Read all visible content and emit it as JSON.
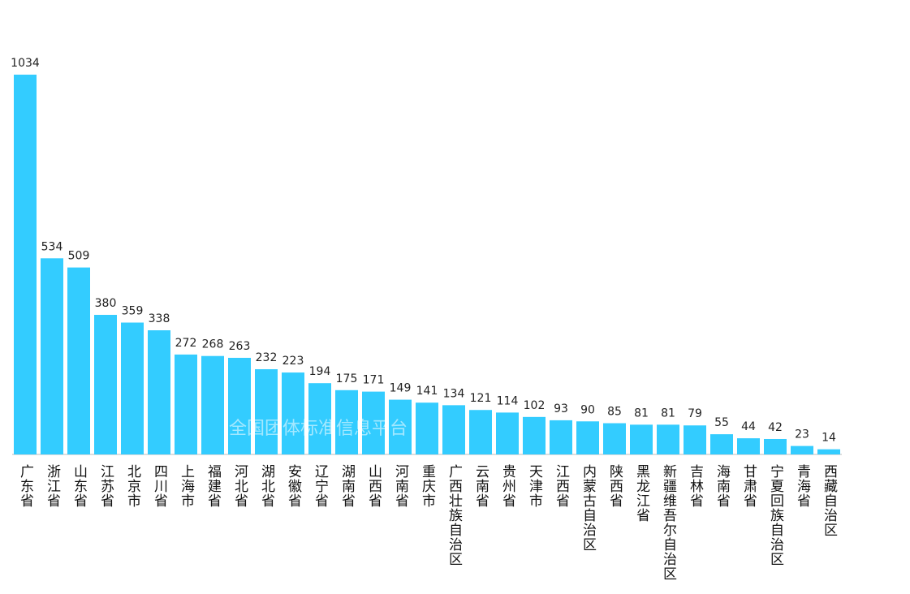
{
  "chart_data": {
    "type": "bar",
    "categories": [
      "广东省",
      "浙江省",
      "山东省",
      "江苏省",
      "北京市",
      "四川省",
      "上海市",
      "福建省",
      "河北省",
      "湖北省",
      "安徽省",
      "辽宁省",
      "湖南省",
      "山西省",
      "河南省",
      "重庆市",
      "广西壮族自治区",
      "云南省",
      "贵州省",
      "天津市",
      "江西省",
      "内蒙古自治区",
      "陕西省",
      "黑龙江省",
      "新疆维吾尔自治区",
      "吉林省",
      "海南省",
      "甘肃省",
      "宁夏回族自治区",
      "青海省",
      "西藏自治区"
    ],
    "values": [
      1034,
      534,
      509,
      380,
      359,
      338,
      272,
      268,
      263,
      232,
      223,
      194,
      175,
      171,
      149,
      141,
      134,
      121,
      114,
      102,
      93,
      90,
      85,
      81,
      81,
      79,
      55,
      44,
      42,
      23,
      14
    ],
    "color": "#33ccff",
    "watermark": "全国团体标准信息平台"
  }
}
